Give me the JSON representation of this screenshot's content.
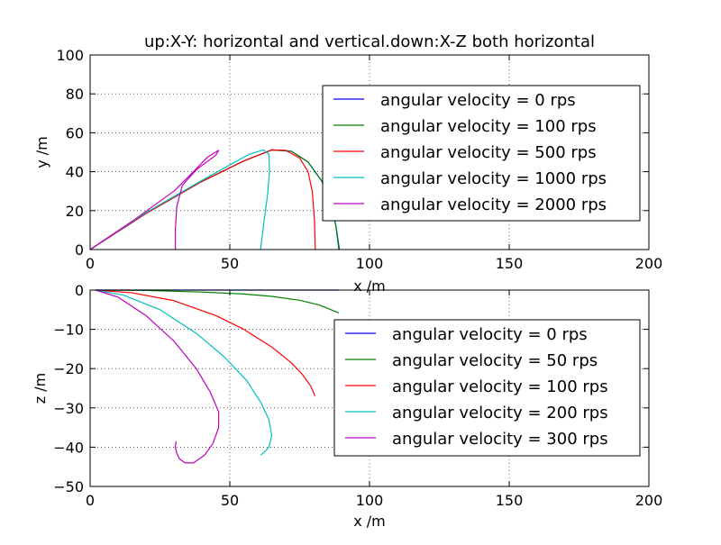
{
  "page_title": "up:X-Y: horizontal and vertical.down:X-Z both horizontal",
  "chart_data": [
    {
      "type": "line",
      "title": "up:X-Y: horizontal and vertical.down:X-Z both horizontal",
      "xlabel": "x /m",
      "ylabel": "y /m",
      "xlim": [
        0,
        200
      ],
      "ylim": [
        0,
        100
      ],
      "xticks": [
        0,
        50,
        100,
        150,
        200
      ],
      "yticks": [
        0,
        20,
        40,
        60,
        80,
        100
      ],
      "grid": true,
      "legend_position": "upper-right",
      "series": [
        {
          "name": "angular velocity = 0 rps",
          "color": "#0000ff",
          "x": [
            0,
            20,
            40,
            55,
            65,
            72,
            78,
            83,
            86,
            88,
            89.2
          ],
          "y": [
            0,
            18.5,
            35,
            45.5,
            51.2,
            50.5,
            45,
            35,
            24,
            12,
            0
          ]
        },
        {
          "name": "angular velocity = 100 rps",
          "color": "#008000",
          "x": [
            0,
            20,
            40,
            55,
            65,
            72,
            78,
            83,
            86,
            88,
            89
          ],
          "y": [
            0,
            18.5,
            35,
            45.5,
            51.2,
            50.5,
            45,
            35,
            24,
            12,
            0
          ]
        },
        {
          "name": "angular velocity = 500 rps",
          "color": "#ff0000",
          "x": [
            0,
            20,
            40,
            55,
            65,
            70,
            75,
            78,
            79.5,
            80.3,
            80.6
          ],
          "y": [
            0,
            18.5,
            35,
            45.5,
            51.2,
            51,
            47,
            40,
            30,
            15,
            0
          ]
        },
        {
          "name": "angular velocity = 1000 rps",
          "color": "#00bfbf",
          "x": [
            0,
            20,
            40,
            50,
            57,
            62,
            64,
            64.2,
            63.5,
            62.2,
            61
          ],
          "y": [
            0,
            19,
            35.5,
            43.5,
            49,
            51.2,
            49,
            40,
            28,
            14,
            0
          ]
        },
        {
          "name": "angular velocity = 2000 rps",
          "color": "#bf00bf",
          "x": [
            0,
            15,
            30,
            37,
            42,
            46,
            45,
            38,
            33,
            31,
            30.5,
            30.5
          ],
          "y": [
            0,
            14.5,
            30,
            40,
            47.5,
            51,
            48.5,
            41,
            33,
            22,
            10,
            0
          ]
        }
      ]
    },
    {
      "type": "line",
      "xlabel": "x /m",
      "ylabel": "z /m",
      "xlim": [
        0,
        200
      ],
      "ylim": [
        -50,
        0
      ],
      "xticks": [
        0,
        50,
        100,
        150,
        200
      ],
      "yticks": [
        0,
        -10,
        -20,
        -30,
        -40,
        -50
      ],
      "grid": true,
      "legend_position": "right",
      "series": [
        {
          "name": "angular velocity = 0 rps",
          "color": "#0000ff",
          "x": [
            2,
            89
          ],
          "y": [
            0,
            0
          ]
        },
        {
          "name": "angular velocity = 50 rps",
          "color": "#008000",
          "x": [
            2,
            20,
            40,
            55,
            65,
            75,
            82,
            89
          ],
          "y": [
            0,
            -0.1,
            -0.5,
            -1.0,
            -1.6,
            -2.6,
            -3.8,
            -5.8
          ]
        },
        {
          "name": "angular velocity = 100 rps",
          "color": "#ff0000",
          "x": [
            2,
            15,
            30,
            45,
            55,
            65,
            72,
            76,
            79,
            80.5
          ],
          "y": [
            0,
            -0.7,
            -2.7,
            -6.5,
            -10,
            -14.5,
            -18.5,
            -21.5,
            -24.5,
            -27
          ]
        },
        {
          "name": "angular velocity = 200 rps",
          "color": "#00bfbf",
          "x": [
            2,
            12,
            25,
            38,
            48,
            56,
            61,
            64,
            65,
            64,
            62,
            61
          ],
          "y": [
            0,
            -1.3,
            -5,
            -11,
            -17,
            -23,
            -28.5,
            -33,
            -37,
            -40,
            -41.5,
            -42
          ]
        },
        {
          "name": "angular velocity = 300 rps",
          "color": "#bf00bf",
          "x": [
            2,
            10,
            20,
            30,
            38,
            43,
            46,
            46,
            44,
            41,
            37,
            34,
            32,
            31,
            30.5,
            30.8
          ],
          "y": [
            0,
            -1.8,
            -6.5,
            -13,
            -20,
            -26,
            -31,
            -35,
            -39,
            -42,
            -44,
            -44,
            -43,
            -41.5,
            -40,
            -38.5
          ]
        }
      ]
    }
  ]
}
